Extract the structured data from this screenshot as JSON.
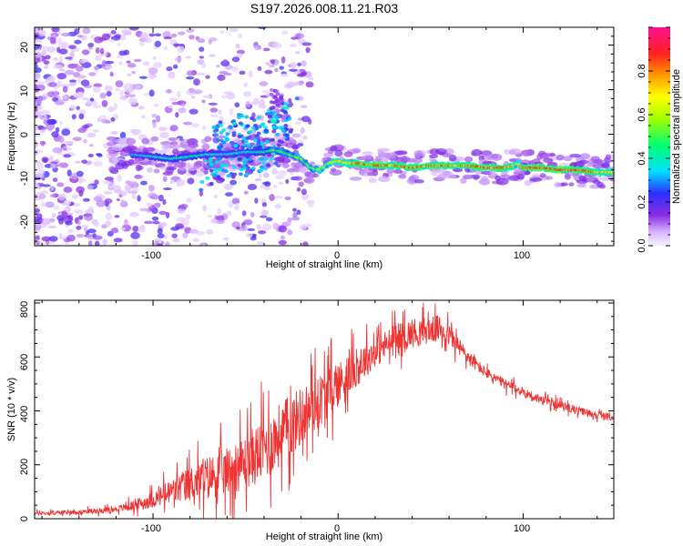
{
  "title": "S197.2026.008.11.21.R03",
  "chart_data": [
    {
      "type": "heatmap",
      "xlabel": "Height of straight line (km)",
      "ylabel": "Frequency (Hz)",
      "xlim": [
        -164,
        149
      ],
      "ylim": [
        -25,
        24
      ],
      "xticks": [
        "-100",
        "0",
        "100"
      ],
      "yticks": [
        "20",
        "10",
        "0",
        "-10",
        "-20"
      ],
      "colorbar": {
        "label": "Normalized spectral amplitude",
        "range": [
          0.0,
          1.0
        ],
        "ticks": [
          "0.0",
          "0.2",
          "0.4",
          "0.6",
          "0.8"
        ]
      },
      "ridge": {
        "x": [
          -112,
          -100,
          -90,
          -80,
          -70,
          -60,
          -50,
          -40,
          -35,
          -30,
          -20,
          -15,
          -10,
          -5,
          0,
          5,
          10,
          20,
          30,
          40,
          50,
          60,
          70,
          80,
          90,
          95,
          97,
          100,
          110,
          120,
          130,
          140,
          149
        ],
        "freq": [
          -4.5,
          -5,
          -5.5,
          -5,
          -4.5,
          -4.5,
          -4,
          -4,
          -3.5,
          -4,
          -5.5,
          -7.5,
          -8,
          -6.5,
          -6,
          -6.5,
          -6.5,
          -7,
          -7,
          -7.5,
          -7,
          -7,
          -7,
          -7.5,
          -7.5,
          -7,
          -6.5,
          -7.5,
          -7.5,
          -8,
          -8,
          -8.5,
          -8.5
        ],
        "amplitude": [
          0.35,
          0.4,
          0.45,
          0.45,
          0.4,
          0.4,
          0.4,
          0.45,
          0.55,
          0.55,
          0.6,
          0.55,
          0.6,
          0.65,
          0.75,
          0.75,
          0.85,
          0.9,
          0.85,
          0.9,
          0.85,
          0.85,
          0.85,
          0.9,
          0.85,
          0.8,
          0.6,
          0.9,
          0.95,
          0.95,
          0.9,
          0.8,
          0.75
        ]
      }
    },
    {
      "type": "line",
      "xlabel": "Height of straight line (km)",
      "ylabel": "SNR (10 * v/v)",
      "xlim": [
        -164,
        149
      ],
      "ylim": [
        0,
        810
      ],
      "xticks": [
        "-100",
        "0",
        "100"
      ],
      "yticks": [
        "0",
        "200",
        "400",
        "600",
        "800"
      ],
      "series": [
        {
          "name": "SNR",
          "color": "#ee3333",
          "x": [
            -164,
            -150,
            -140,
            -130,
            -120,
            -110,
            -100,
            -90,
            -80,
            -70,
            -60,
            -50,
            -40,
            -30,
            -20,
            -10,
            0,
            10,
            20,
            30,
            40,
            50,
            55,
            60,
            70,
            80,
            90,
            100,
            110,
            120,
            130,
            140,
            149
          ],
          "base": [
            20,
            22,
            25,
            30,
            35,
            50,
            70,
            100,
            130,
            155,
            175,
            210,
            260,
            320,
            380,
            440,
            500,
            560,
            620,
            660,
            690,
            700,
            705,
            680,
            600,
            540,
            500,
            470,
            440,
            420,
            400,
            385,
            375
          ],
          "spread": [
            15,
            15,
            15,
            20,
            20,
            40,
            60,
            100,
            130,
            160,
            180,
            200,
            240,
            240,
            220,
            200,
            170,
            140,
            120,
            110,
            110,
            100,
            100,
            80,
            60,
            40,
            40,
            35,
            35,
            30,
            30,
            25,
            25
          ]
        }
      ]
    }
  ]
}
